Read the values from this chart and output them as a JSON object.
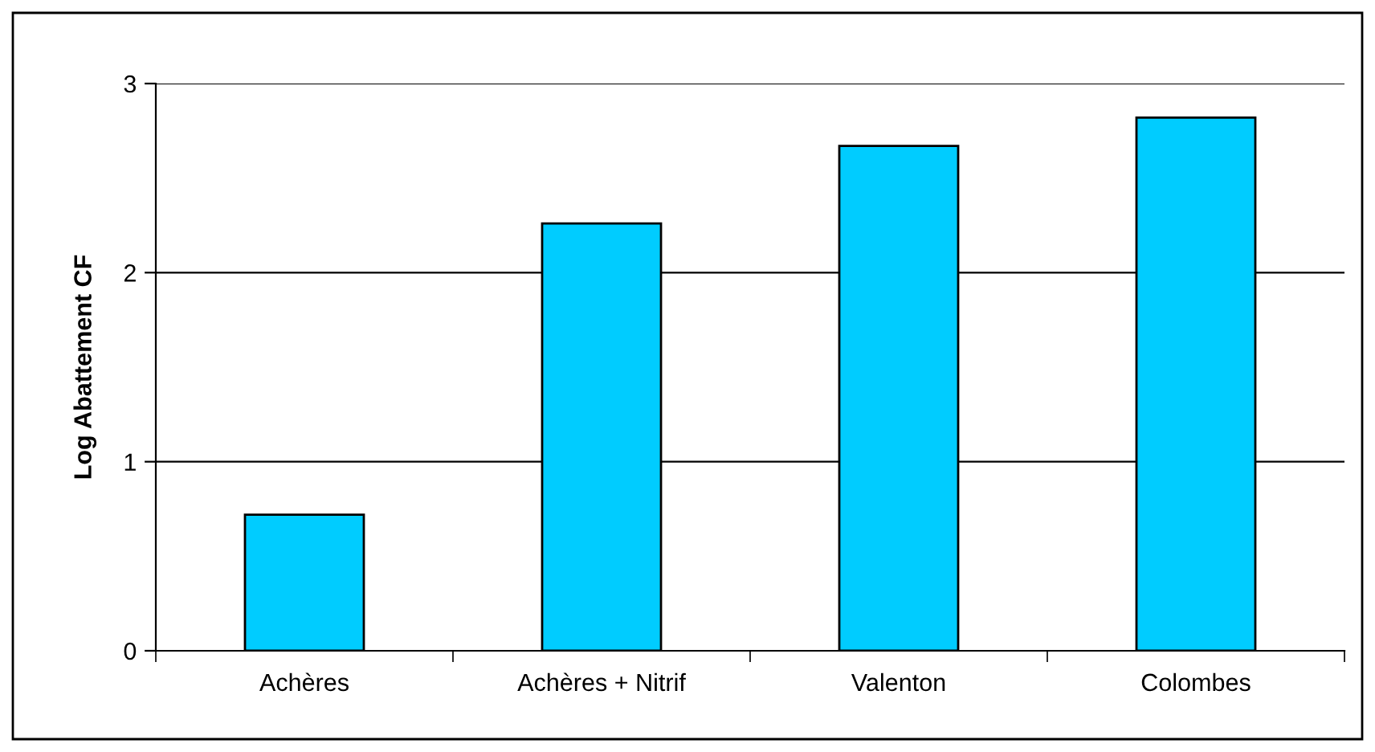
{
  "chart_data": {
    "type": "bar",
    "ylabel": "Log Abattement CF",
    "categories": [
      "Achères",
      "Achères + Nitrif",
      "Valenton",
      "Colombes"
    ],
    "values": [
      0.72,
      2.26,
      2.67,
      2.82
    ],
    "color": "#00ccff",
    "ylim": [
      0,
      3
    ],
    "yticks": [
      0,
      1,
      2,
      3
    ],
    "grid": "y",
    "legend": false
  }
}
